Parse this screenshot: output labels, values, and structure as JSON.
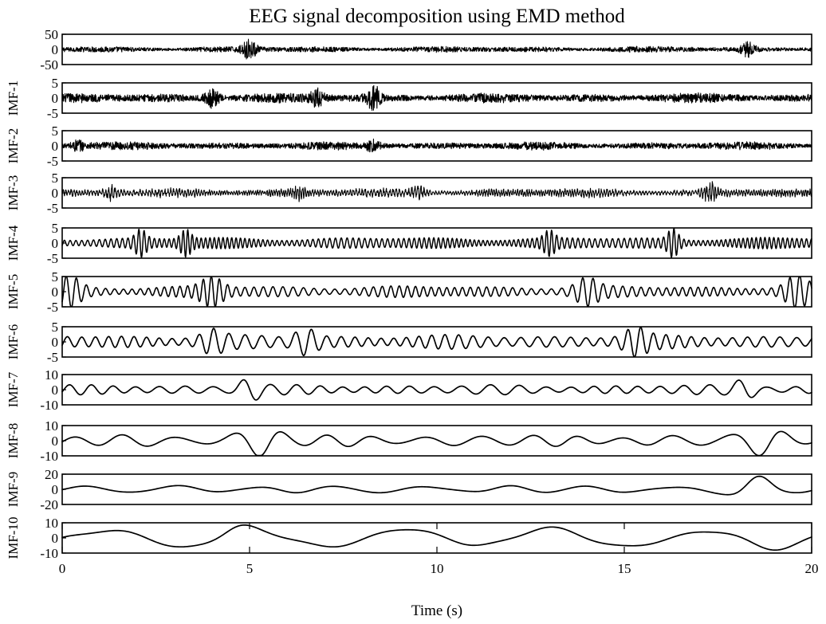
{
  "chart_data": {
    "type": "line",
    "title": "EEG signal decomposition using EMD method",
    "xlabel": "Time (s)",
    "xlim": [
      0,
      20
    ],
    "xticks": [
      0,
      5,
      10,
      15,
      20
    ],
    "xtick_labels": [
      "0",
      "5",
      "10",
      "15",
      "20"
    ],
    "grid": false,
    "legend": "none",
    "line_color": "#000000",
    "series": [
      {
        "ylabel": "",
        "ylim": [
          -50,
          50
        ],
        "yticks": [
          50,
          0,
          -50
        ],
        "ytick_labels": [
          "50",
          "0",
          "-50"
        ],
        "typical_amplitude": 8,
        "bursts": [
          {
            "t": 5.0,
            "amplitude": 30
          },
          {
            "t": 18.3,
            "amplitude": 25
          }
        ]
      },
      {
        "ylabel": "IMF-1",
        "ylim": [
          -5,
          5
        ],
        "yticks": [
          5,
          0,
          -5
        ],
        "ytick_labels": [
          "5",
          "0",
          "-5"
        ],
        "typical_amplitude": 1.2,
        "bursts": [
          {
            "t": 4.0,
            "amplitude": 3.5
          },
          {
            "t": 6.8,
            "amplitude": 3
          },
          {
            "t": 8.3,
            "amplitude": 4
          }
        ]
      },
      {
        "ylabel": "IMF-2",
        "ylim": [
          -5,
          5
        ],
        "yticks": [
          5,
          0,
          -5
        ],
        "ytick_labels": [
          "5",
          "0",
          "-5"
        ],
        "typical_amplitude": 1.0,
        "bursts": [
          {
            "t": 0.4,
            "amplitude": 2
          },
          {
            "t": 8.3,
            "amplitude": 2
          }
        ]
      },
      {
        "ylabel": "IMF-3",
        "ylim": [
          -5,
          5
        ],
        "yticks": [
          5,
          0,
          -5
        ],
        "ytick_labels": [
          "5",
          "0",
          "-5"
        ],
        "typical_amplitude": 1.3,
        "bursts": [
          {
            "t": 1.3,
            "amplitude": 2.5
          },
          {
            "t": 6.3,
            "amplitude": 2.5
          },
          {
            "t": 9.5,
            "amplitude": 2.5
          },
          {
            "t": 17.3,
            "amplitude": 3.5
          }
        ]
      },
      {
        "ylabel": "IMF-4",
        "ylim": [
          -5,
          5
        ],
        "yticks": [
          5,
          0,
          -5
        ],
        "ytick_labels": [
          "5",
          "0",
          "-5"
        ],
        "typical_amplitude": 1.5,
        "bursts": [
          {
            "t": 2.1,
            "amplitude": 4
          },
          {
            "t": 3.3,
            "amplitude": 4
          },
          {
            "t": 16.3,
            "amplitude": 4.5
          },
          {
            "t": 13.0,
            "amplitude": 3.5
          }
        ]
      },
      {
        "ylabel": "IMF-5",
        "ylim": [
          -5,
          5
        ],
        "yticks": [
          5,
          0,
          -5
        ],
        "ytick_labels": [
          "5",
          "0",
          "-5"
        ],
        "typical_amplitude": 1.5,
        "bursts": [
          {
            "t": 0.2,
            "amplitude": 4.5
          },
          {
            "t": 4.0,
            "amplitude": 4.5
          },
          {
            "t": 14.0,
            "amplitude": 4
          },
          {
            "t": 19.6,
            "amplitude": 4.8
          }
        ]
      },
      {
        "ylabel": "IMF-6",
        "ylim": [
          -5,
          5
        ],
        "yticks": [
          5,
          0,
          -5
        ],
        "ytick_labels": [
          "5",
          "0",
          "-5"
        ],
        "typical_amplitude": 1.8,
        "bursts": [
          {
            "t": 4.0,
            "amplitude": 3.5
          },
          {
            "t": 6.5,
            "amplitude": 4
          },
          {
            "t": 15.3,
            "amplitude": 4
          }
        ]
      },
      {
        "ylabel": "IMF-7",
        "ylim": [
          -10,
          10
        ],
        "yticks": [
          10,
          0,
          -10
        ],
        "ytick_labels": [
          "10",
          "0",
          "-10"
        ],
        "typical_amplitude": 2.5,
        "bursts": [
          {
            "t": 5.0,
            "amplitude": 7
          },
          {
            "t": 18.2,
            "amplitude": 6
          }
        ]
      },
      {
        "ylabel": "IMF-8",
        "ylim": [
          -10,
          10
        ],
        "yticks": [
          10,
          0,
          -10
        ],
        "ytick_labels": [
          "10",
          "0",
          "-10"
        ],
        "typical_amplitude": 3,
        "bursts": [
          {
            "t": 5.3,
            "amplitude": 9
          },
          {
            "t": 18.7,
            "amplitude": 8
          }
        ]
      },
      {
        "ylabel": "IMF-9",
        "ylim": [
          -20,
          20
        ],
        "yticks": [
          20,
          0,
          -20
        ],
        "ytick_labels": [
          "20",
          "0",
          "-20"
        ],
        "typical_amplitude": 4,
        "bursts": [
          {
            "t": 18.5,
            "amplitude": 16
          }
        ]
      },
      {
        "ylabel": "IMF-10",
        "ylim": [
          -10,
          10
        ],
        "yticks": [
          10,
          0,
          -10
        ],
        "ytick_labels": [
          "10",
          "0",
          "-10"
        ],
        "typical_amplitude": 6,
        "bursts": [
          {
            "t": 4.6,
            "amplitude": 6
          }
        ]
      }
    ]
  }
}
